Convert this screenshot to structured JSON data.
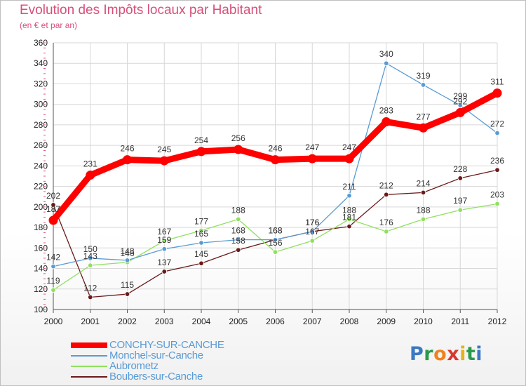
{
  "title": "Evolution des Impôts locaux par Habitant",
  "subtitle": "(en € et par an)",
  "logo": {
    "text": "Proxiti",
    "colors": [
      "#3a78c2",
      "#2a9a4a",
      "#f0821e",
      "#d8392f",
      "#e7b21a",
      "#2a9a4a",
      "#3a78c2"
    ]
  },
  "chart_data": {
    "type": "line",
    "x": [
      "2000",
      "2001",
      "2002",
      "2003",
      "2004",
      "2005",
      "2006",
      "2007",
      "2008",
      "2009",
      "2010",
      "2011",
      "2012"
    ],
    "ylim": [
      100,
      360
    ],
    "yticks": [
      "100",
      "120",
      "140",
      "160",
      "180",
      "200",
      "220",
      "240",
      "260",
      "280",
      "300",
      "320",
      "340",
      "360"
    ],
    "grid": true,
    "legend_position": "bottom-left",
    "series": [
      {
        "name": "Boubers-sur-Canche",
        "color": "#6b1a1a",
        "values": [
          202,
          112,
          115,
          137,
          145,
          158,
          168,
          176,
          181,
          212,
          214,
          228,
          236
        ],
        "labels": [
          "202",
          "112",
          "115",
          "137",
          "145",
          "158",
          "168",
          "176",
          "181",
          "212",
          "214",
          "228",
          "236"
        ]
      },
      {
        "name": "Aubrometz",
        "color": "#90e060",
        "values": [
          119,
          143,
          146,
          167,
          177,
          188,
          156,
          167,
          188,
          176,
          188,
          197,
          203
        ],
        "labels": [
          "119",
          "143",
          "146",
          "167",
          "177",
          "188",
          "156",
          "167",
          "188",
          "176",
          "188",
          "197",
          "203"
        ]
      },
      {
        "name": "Monchel-sur-Canche",
        "color": "#5a9bd5",
        "values": [
          142,
          150,
          148,
          159,
          165,
          168,
          168,
          176,
          211,
          340,
          319,
          299,
          272
        ],
        "labels": [
          "142",
          "150",
          "148",
          "159",
          "165",
          "168",
          "168",
          "176",
          "211",
          "340",
          "319",
          "299",
          "272"
        ]
      },
      {
        "name": "CONCHY-SUR-CANCHE",
        "color": "#ff0000",
        "values": [
          187,
          231,
          246,
          245,
          254,
          256,
          246,
          247,
          247,
          283,
          277,
          292,
          311
        ],
        "labels": [
          "187",
          "231",
          "246",
          "245",
          "254",
          "256",
          "246",
          "247",
          "247",
          "283",
          "277",
          "292",
          "311"
        ]
      }
    ],
    "legend": [
      "CONCHY-SUR-CANCHE",
      "Monchel-sur-Canche",
      "Aubrometz",
      "Boubers-sur-Canche"
    ]
  }
}
